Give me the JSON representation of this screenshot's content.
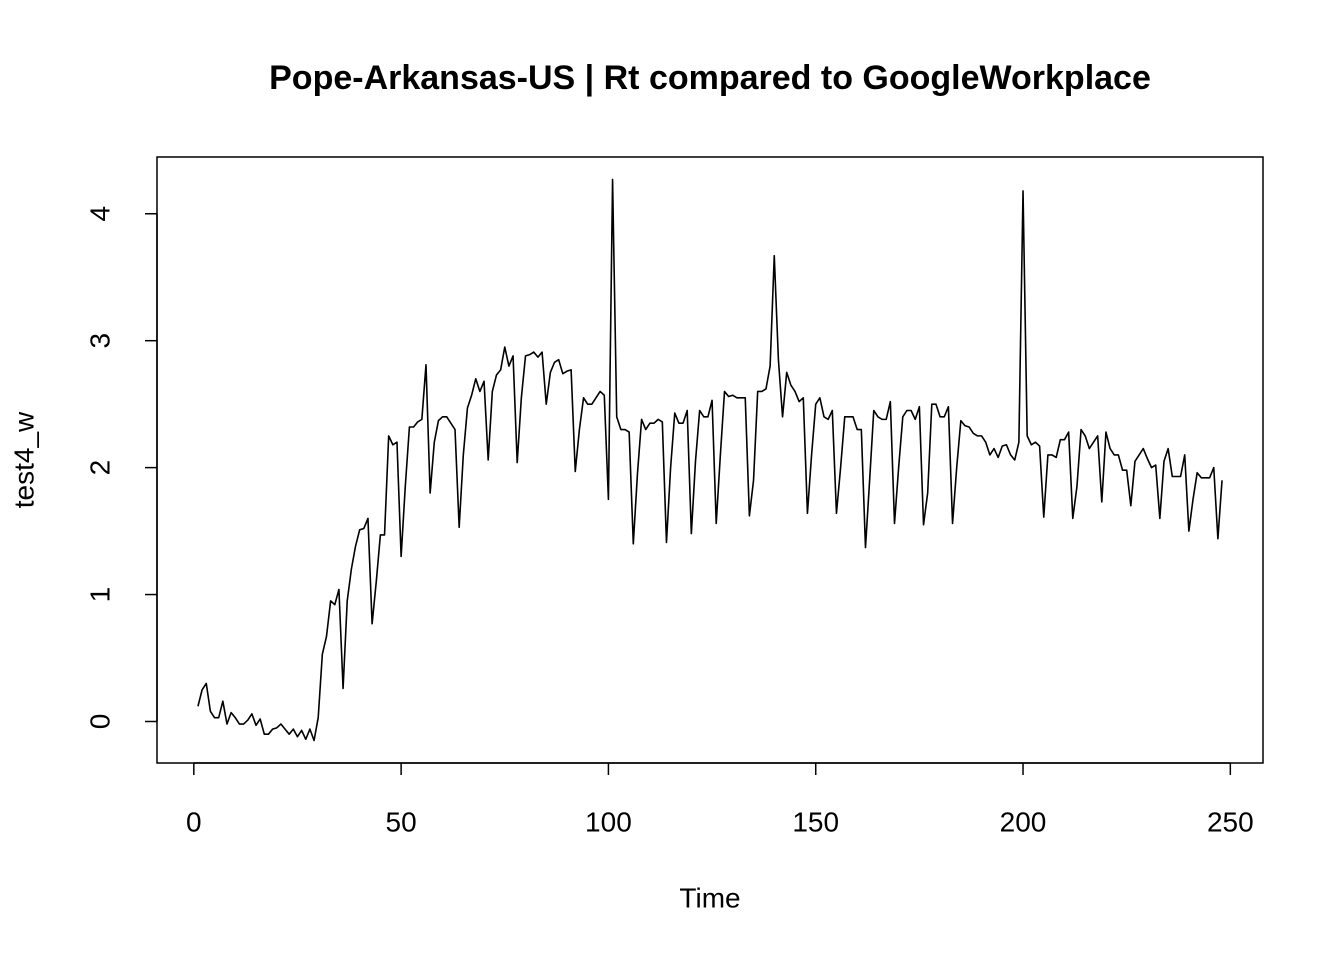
{
  "chart_data": {
    "type": "line",
    "title": "Pope-Arkansas-US | Rt compared to GoogleWorkplace",
    "x_label": "Time",
    "y_label": "test4_w",
    "x": [
      1,
      2,
      3,
      4,
      5,
      6,
      7,
      8,
      9,
      10,
      11,
      12,
      13,
      14,
      15,
      16,
      17,
      18,
      19,
      20,
      21,
      22,
      23,
      24,
      25,
      26,
      27,
      28,
      29,
      30,
      31,
      32,
      33,
      34,
      35,
      36,
      37,
      38,
      39,
      40,
      41,
      42,
      43,
      44,
      45,
      46,
      47,
      48,
      49,
      50,
      51,
      52,
      53,
      54,
      55,
      56,
      57,
      58,
      59,
      60,
      61,
      62,
      63,
      64,
      65,
      66,
      67,
      68,
      69,
      70,
      71,
      72,
      73,
      74,
      75,
      76,
      77,
      78,
      79,
      80,
      81,
      82,
      83,
      84,
      85,
      86,
      87,
      88,
      89,
      90,
      91,
      92,
      93,
      94,
      95,
      96,
      97,
      98,
      99,
      100,
      101,
      102,
      103,
      104,
      105,
      106,
      107,
      108,
      109,
      110,
      111,
      112,
      113,
      114,
      115,
      116,
      117,
      118,
      119,
      120,
      121,
      122,
      123,
      124,
      125,
      126,
      127,
      128,
      129,
      130,
      131,
      132,
      133,
      134,
      135,
      136,
      137,
      138,
      139,
      140,
      141,
      142,
      143,
      144,
      145,
      146,
      147,
      148,
      149,
      150,
      151,
      152,
      153,
      154,
      155,
      156,
      157,
      158,
      159,
      160,
      161,
      162,
      163,
      164,
      165,
      166,
      167,
      168,
      169,
      170,
      171,
      172,
      173,
      174,
      175,
      176,
      177,
      178,
      179,
      180,
      181,
      182,
      183,
      184,
      185,
      186,
      187,
      188,
      189,
      190,
      191,
      192,
      193,
      194,
      195,
      196,
      197,
      198,
      199,
      200,
      201,
      202,
      203,
      204,
      205,
      206,
      207,
      208,
      209,
      210,
      211,
      212,
      213,
      214,
      215,
      216,
      217,
      218,
      219,
      220,
      221,
      222,
      223,
      224,
      225,
      226,
      227,
      228,
      229,
      230,
      231,
      232,
      233,
      234,
      235,
      236,
      237,
      238,
      239,
      240,
      241,
      242,
      243,
      244,
      245,
      246,
      247,
      248
    ],
    "values": [
      0.12,
      0.25,
      0.3,
      0.08,
      0.03,
      0.03,
      0.16,
      -0.02,
      0.07,
      0.03,
      -0.02,
      -0.02,
      0.01,
      0.06,
      -0.03,
      0.02,
      -0.1,
      -0.1,
      -0.06,
      -0.05,
      -0.02,
      -0.06,
      -0.1,
      -0.06,
      -0.12,
      -0.07,
      -0.14,
      -0.06,
      -0.15,
      0.03,
      0.53,
      0.67,
      0.95,
      0.92,
      1.04,
      0.26,
      0.95,
      1.2,
      1.38,
      1.51,
      1.52,
      1.6,
      0.77,
      1.1,
      1.47,
      1.47,
      2.25,
      2.18,
      2.2,
      1.3,
      1.85,
      2.32,
      2.32,
      2.36,
      2.38,
      2.81,
      1.8,
      2.2,
      2.37,
      2.4,
      2.4,
      2.35,
      2.3,
      1.53,
      2.1,
      2.47,
      2.57,
      2.7,
      2.6,
      2.68,
      2.06,
      2.6,
      2.73,
      2.77,
      2.95,
      2.8,
      2.88,
      2.04,
      2.55,
      2.88,
      2.89,
      2.91,
      2.87,
      2.91,
      2.5,
      2.75,
      2.83,
      2.85,
      2.74,
      2.76,
      2.77,
      1.97,
      2.3,
      2.55,
      2.5,
      2.5,
      2.55,
      2.6,
      2.57,
      1.75,
      4.27,
      2.4,
      2.3,
      2.3,
      2.28,
      1.4,
      1.95,
      2.38,
      2.3,
      2.35,
      2.35,
      2.38,
      2.36,
      1.41,
      2.0,
      2.43,
      2.35,
      2.35,
      2.45,
      1.48,
      2.05,
      2.45,
      2.4,
      2.4,
      2.53,
      1.56,
      2.1,
      2.6,
      2.56,
      2.57,
      2.55,
      2.55,
      2.55,
      1.62,
      1.9,
      2.6,
      2.6,
      2.62,
      2.8,
      3.67,
      2.85,
      2.4,
      2.75,
      2.65,
      2.6,
      2.52,
      2.55,
      1.64,
      2.1,
      2.5,
      2.55,
      2.4,
      2.38,
      2.45,
      1.64,
      2.0,
      2.4,
      2.4,
      2.4,
      2.3,
      2.3,
      1.37,
      1.9,
      2.45,
      2.4,
      2.38,
      2.38,
      2.52,
      1.56,
      2.0,
      2.4,
      2.45,
      2.45,
      2.38,
      2.48,
      1.55,
      1.8,
      2.5,
      2.5,
      2.4,
      2.4,
      2.48,
      1.56,
      2.0,
      2.37,
      2.33,
      2.32,
      2.27,
      2.25,
      2.25,
      2.2,
      2.1,
      2.15,
      2.08,
      2.17,
      2.18,
      2.1,
      2.06,
      2.2,
      4.18,
      2.25,
      2.18,
      2.2,
      2.17,
      1.61,
      2.1,
      2.1,
      2.08,
      2.22,
      2.22,
      2.28,
      1.6,
      1.85,
      2.3,
      2.25,
      2.15,
      2.2,
      2.25,
      1.73,
      2.28,
      2.15,
      2.1,
      2.1,
      1.98,
      1.98,
      1.7,
      2.05,
      2.1,
      2.15,
      2.07,
      2.0,
      2.02,
      1.6,
      2.05,
      2.15,
      1.93,
      1.93,
      1.93,
      2.1,
      1.5,
      1.75,
      1.96,
      1.92,
      1.92,
      1.92,
      2.0,
      1.44,
      1.9
    ],
    "color": "#000000",
    "xlim": [
      -8.88,
      257.88
    ],
    "xticks": [
      0,
      50,
      100,
      150,
      200,
      250
    ],
    "ylim": [
      -0.327,
      4.447
    ],
    "yticks": [
      0,
      1,
      2,
      3,
      4
    ]
  }
}
